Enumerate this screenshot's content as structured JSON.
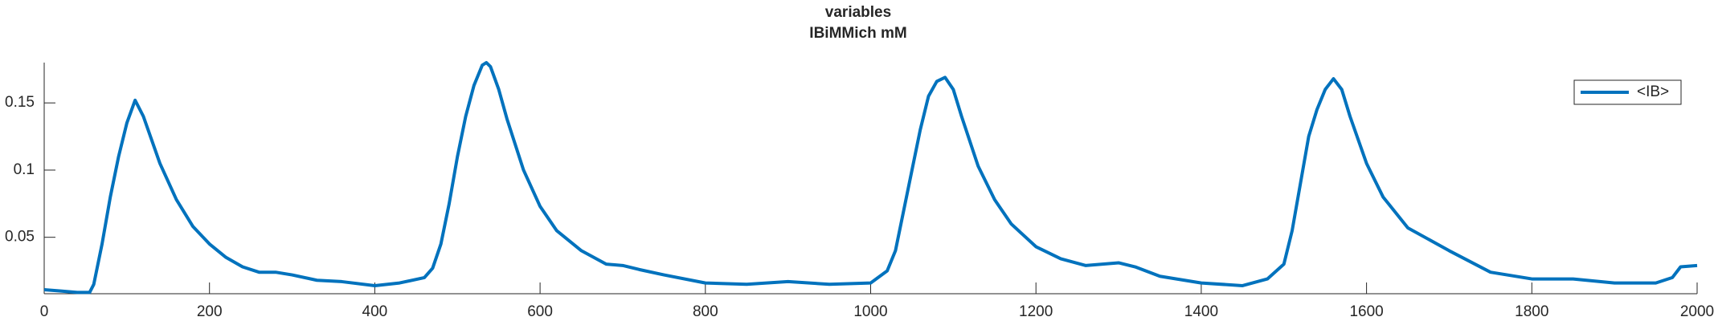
{
  "chart_data": {
    "type": "line",
    "title": "variables",
    "subtitle": "IBiMMich mM",
    "x": [
      0,
      20,
      40,
      55,
      60,
      70,
      80,
      90,
      100,
      110,
      120,
      140,
      160,
      180,
      200,
      220,
      240,
      260,
      280,
      300,
      330,
      360,
      400,
      430,
      460,
      470,
      480,
      490,
      500,
      510,
      520,
      530,
      535,
      540,
      550,
      560,
      580,
      600,
      620,
      650,
      680,
      700,
      720,
      750,
      800,
      850,
      900,
      950,
      1000,
      1020,
      1030,
      1040,
      1050,
      1060,
      1070,
      1080,
      1090,
      1100,
      1110,
      1130,
      1150,
      1170,
      1200,
      1230,
      1260,
      1300,
      1320,
      1350,
      1400,
      1450,
      1480,
      1500,
      1510,
      1520,
      1530,
      1540,
      1550,
      1560,
      1570,
      1580,
      1600,
      1620,
      1650,
      1700,
      1750,
      1800,
      1850,
      1900,
      1950,
      1970,
      1980,
      2000
    ],
    "series": [
      {
        "name": "<IB>",
        "color": "#0072bd",
        "values": [
          0.011,
          0.01,
          0.009,
          0.009,
          0.015,
          0.045,
          0.08,
          0.11,
          0.135,
          0.152,
          0.14,
          0.105,
          0.078,
          0.058,
          0.045,
          0.035,
          0.028,
          0.024,
          0.024,
          0.022,
          0.018,
          0.017,
          0.014,
          0.016,
          0.02,
          0.027,
          0.045,
          0.075,
          0.11,
          0.14,
          0.163,
          0.178,
          0.18,
          0.177,
          0.16,
          0.138,
          0.1,
          0.073,
          0.055,
          0.04,
          0.03,
          0.029,
          0.026,
          0.022,
          0.016,
          0.015,
          0.017,
          0.015,
          0.016,
          0.025,
          0.04,
          0.07,
          0.1,
          0.13,
          0.155,
          0.166,
          0.169,
          0.16,
          0.14,
          0.103,
          0.078,
          0.06,
          0.043,
          0.034,
          0.029,
          0.031,
          0.028,
          0.021,
          0.016,
          0.014,
          0.019,
          0.03,
          0.055,
          0.09,
          0.125,
          0.145,
          0.16,
          0.168,
          0.16,
          0.14,
          0.105,
          0.08,
          0.057,
          0.04,
          0.024,
          0.019,
          0.019,
          0.016,
          0.016,
          0.02,
          0.028,
          0.029
        ]
      }
    ],
    "xlim": [
      0,
      2000
    ],
    "xticks": [
      0,
      200,
      400,
      600,
      800,
      1000,
      1200,
      1400,
      1600,
      1800,
      2000
    ],
    "ylim": [
      0.008,
      0.18
    ],
    "yticks": [
      0.05,
      0.1,
      0.15
    ],
    "grid": false,
    "legend": "upper right"
  }
}
